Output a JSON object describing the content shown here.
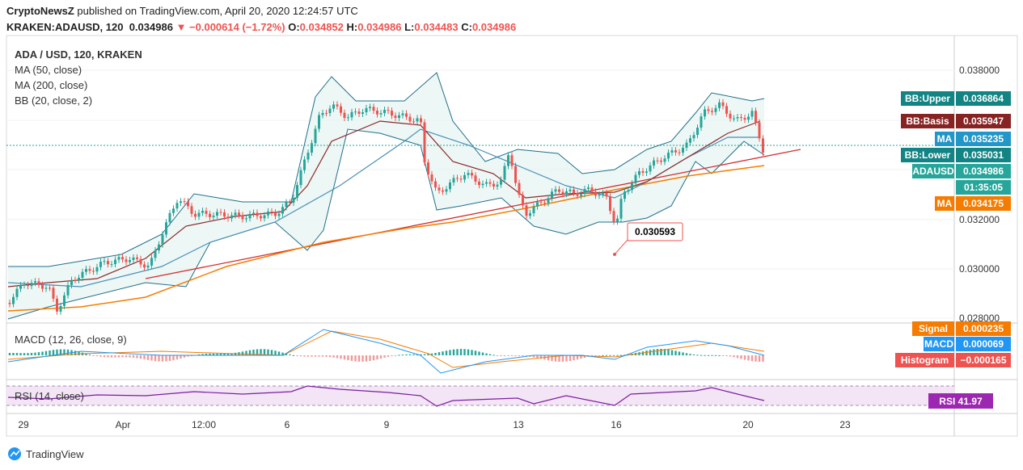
{
  "header": {
    "publisher": "CryptoNewsZ",
    "published": "published on TradingView.com, April 20, 2020 12:24:57 UTC",
    "symbol": "KRAKEN:ADAUSD, 120",
    "last": "0.034986",
    "change": "▼ −0.000614 (−1.72%)",
    "ohlc": [
      {
        "key": "O:",
        "value": "0.034852"
      },
      {
        "key": "H:",
        "value": "0.034986"
      },
      {
        "key": "L:",
        "value": "0.034483"
      },
      {
        "key": "C:",
        "value": "0.034986"
      }
    ]
  },
  "legend": [
    "ADA / USD, 120, KRAKEN",
    "MA (50, close)",
    "MA (200, close)",
    "BB (20, close, 2)"
  ],
  "price_axis": [
    "0.038000",
    "0.032000",
    "0.030000",
    "0.028000"
  ],
  "price_tags": [
    {
      "name": "BB:Upper",
      "value": "0.036864",
      "color": "#138484"
    },
    {
      "name": "BB:Basis",
      "value": "0.035947",
      "color": "#872323"
    },
    {
      "name": "MA",
      "value": "0.035235",
      "color": "#2196c8"
    },
    {
      "name": "BB:Lower",
      "value": "0.035031",
      "color": "#138484"
    },
    {
      "name": "ADAUSD",
      "value": "0.034986",
      "color": "#26a69a"
    },
    {
      "name": "",
      "value": "01:35:05",
      "color": "#26a69a"
    },
    {
      "name": "MA",
      "value": "0.034175",
      "color": "#f57c00"
    }
  ],
  "callout": "0.030593",
  "macd": {
    "title": "MACD (12, 26, close, 9)",
    "tags": [
      {
        "name": "Signal",
        "value": "0.000235",
        "color": "#f57c00"
      },
      {
        "name": "MACD",
        "value": "0.000069",
        "color": "#2196f3"
      },
      {
        "name": "Histogram",
        "value": "−0.000165",
        "color": "#ef5350"
      }
    ]
  },
  "rsi": {
    "title": "RSI (14, close)",
    "name": "RSI",
    "value": "41.97"
  },
  "time_axis": [
    "29",
    "Apr",
    "12:00",
    "6",
    "9",
    "13",
    "16",
    "20",
    "23"
  ],
  "footer": "TradingView"
}
